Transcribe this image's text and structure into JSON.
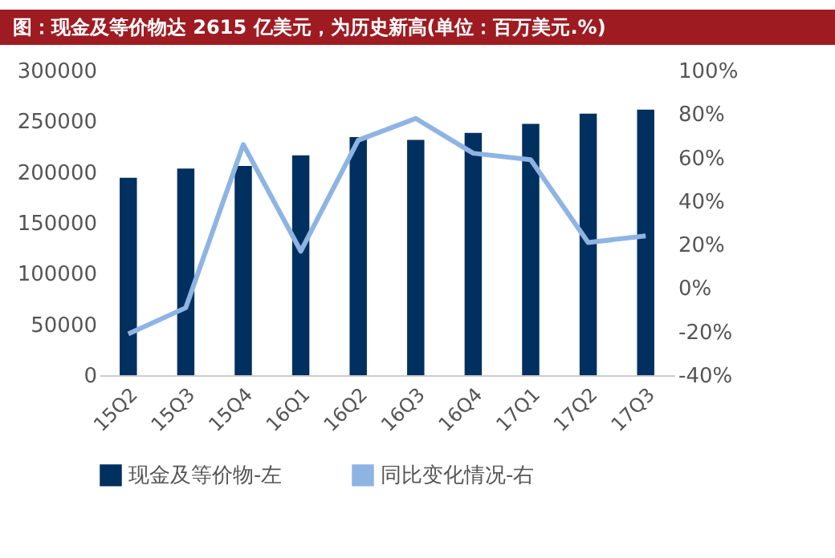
{
  "chart_data": {
    "type": "bar",
    "title": "图：现金及等价物达 2615 亿美元，为历史新高(单位：百万美元.%)",
    "categories": [
      "15Q2",
      "15Q3",
      "15Q4",
      "16Q1",
      "16Q2",
      "16Q3",
      "16Q4",
      "17Q1",
      "17Q2",
      "17Q3"
    ],
    "series": [
      {
        "name": "现金及等价物-左",
        "color": "#00305f",
        "values": [
          194400,
          203400,
          206000,
          216500,
          234400,
          231800,
          238600,
          247500,
          257500,
          261500
        ]
      },
      {
        "name": "同比变化情况-右",
        "type": "line",
        "axis": "y2",
        "color": "#8eb4e3",
        "values": [
          -21,
          -9,
          66,
          17,
          68,
          78,
          62,
          59,
          21,
          24
        ]
      }
    ],
    "ylim": [
      0,
      300000
    ],
    "yticks": [
      0,
      50000,
      100000,
      150000,
      200000,
      250000,
      300000
    ],
    "y2lim": [
      -40,
      100
    ],
    "y2ticks": [
      {
        "value": -40,
        "label": "-40%"
      },
      {
        "value": -20,
        "label": "-20%"
      },
      {
        "value": 0,
        "label": "0%"
      },
      {
        "value": 20,
        "label": "20%"
      },
      {
        "value": 40,
        "label": "40%"
      },
      {
        "value": 60,
        "label": "60%"
      },
      {
        "value": 80,
        "label": "80%"
      },
      {
        "value": 100,
        "label": "100%"
      }
    ],
    "grid": false,
    "legend": "bottom",
    "marker": "none",
    "line_style": "solid"
  }
}
